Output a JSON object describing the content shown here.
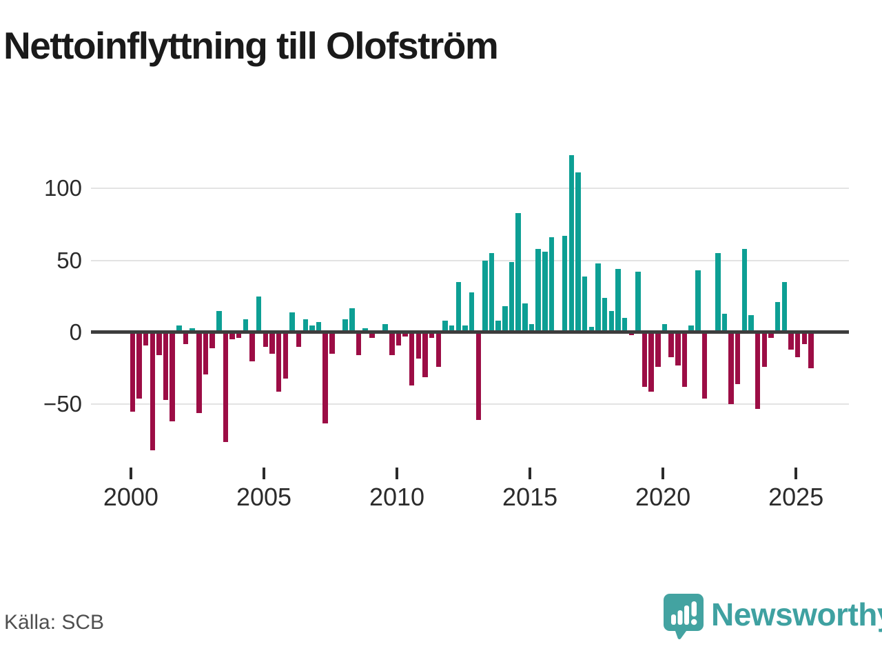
{
  "title": "Nettoinflyttning till Olofström",
  "source": "Källa: SCB",
  "logo": {
    "brand": "Newsworthy",
    "icon": "newsworthy-speech-bubble-chart-icon"
  },
  "colors": {
    "positive_bar": "#0D9F94",
    "negative_bar": "#9C0D45",
    "zero_line": "#3D3D3D",
    "gridline": "#E3E3E3",
    "axis_text": "#2B2B2B",
    "source_text": "#4F4F4F",
    "brand_teal": "#3FA1A1",
    "title_text": "#1A1A1A",
    "background": "#FFFFFF"
  },
  "chart_data": {
    "type": "bar",
    "title": "Nettoinflyttning till Olofström",
    "frequency": "quarterly",
    "start_period": "2000 Q1",
    "end_period": "2025 Q3",
    "x_tick_labels": [
      "2000",
      "2005",
      "2010",
      "2015",
      "2020",
      "2025"
    ],
    "y_ticks": [
      100,
      50,
      0,
      -50
    ],
    "y_tick_labels": [
      "100",
      "50",
      "0",
      "−50"
    ],
    "ylim": [
      -90,
      125
    ],
    "grid": true,
    "legend": false,
    "values": [
      -55,
      -46,
      -9,
      -82,
      -16,
      -47,
      -62,
      5,
      -8,
      3,
      -56,
      -29,
      -11,
      15,
      -76,
      -5,
      -4,
      9,
      -20,
      25,
      -10,
      -15,
      -41,
      -32,
      14,
      -10,
      9,
      5,
      7,
      -63,
      -15,
      0,
      9,
      17,
      -16,
      3,
      -4,
      0,
      6,
      -16,
      -9,
      -3,
      -37,
      -18,
      -31,
      -4,
      -24,
      8,
      5,
      35,
      5,
      28,
      -61,
      50,
      55,
      8,
      18,
      49,
      83,
      20,
      6,
      58,
      56,
      66,
      0,
      67,
      123,
      111,
      39,
      4,
      48,
      24,
      15,
      44,
      10,
      -2,
      42,
      -38,
      -41,
      -24,
      6,
      -17,
      -23,
      -38,
      5,
      43,
      -46,
      0,
      55,
      13,
      -50,
      -36,
      58,
      12,
      -53,
      -24,
      -4,
      21,
      35,
      -12,
      -17,
      -8,
      -25
    ]
  }
}
